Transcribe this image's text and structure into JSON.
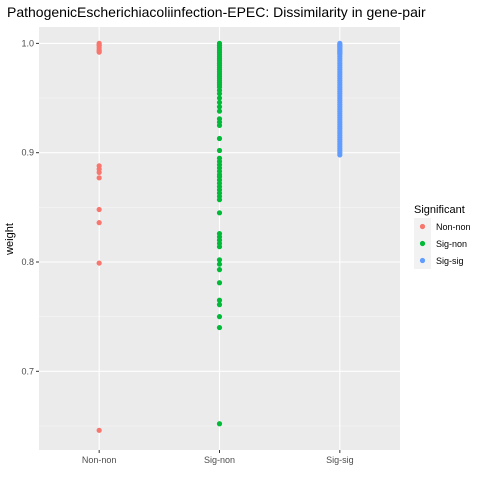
{
  "chart_data": {
    "type": "scatter",
    "title": "PathogenicEscherichiacoliinfection-EPEC: Dissimilarity in gene-pair",
    "xlabel": "",
    "ylabel": "weight",
    "categories": [
      "Non-non",
      "Sig-non",
      "Sig-sig"
    ],
    "ylim": [
      0.628,
      1.015
    ],
    "y_ticks": [
      0.7,
      0.8,
      0.9,
      1.0
    ],
    "y_tick_labels": [
      "0.7",
      "0.8",
      "0.9",
      "1.0"
    ],
    "grid": true,
    "legend": {
      "title": "Significant",
      "position": "right",
      "entries": [
        "Non-non",
        "Sig-non",
        "Sig-sig"
      ]
    },
    "colors": {
      "Non-non": "#F8766D",
      "Sig-non": "#00BA38",
      "Sig-sig": "#619CFF",
      "panel": "#EBEBEB",
      "grid_major": "#FFFFFF",
      "legend_key": "#F2F2F2"
    },
    "series": [
      {
        "name": "Non-non",
        "category": "Non-non",
        "values": [
          1.0,
          0.999,
          0.998,
          0.996,
          0.994,
          0.993,
          0.992,
          0.888,
          0.885,
          0.882,
          0.877,
          0.848,
          0.836,
          0.799,
          0.646
        ]
      },
      {
        "name": "Sig-non",
        "category": "Sig-non",
        "values": [
          1.0,
          0.998,
          0.996,
          0.994,
          0.992,
          0.99,
          0.988,
          0.986,
          0.984,
          0.982,
          0.98,
          0.978,
          0.976,
          0.974,
          0.972,
          0.97,
          0.968,
          0.966,
          0.964,
          0.962,
          0.96,
          0.957,
          0.954,
          0.95,
          0.946,
          0.942,
          0.938,
          0.931,
          0.928,
          0.925,
          0.913,
          0.902,
          0.895,
          0.892,
          0.889,
          0.886,
          0.883,
          0.88,
          0.878,
          0.875,
          0.872,
          0.869,
          0.866,
          0.863,
          0.86,
          0.857,
          0.845,
          0.826,
          0.823,
          0.82,
          0.817,
          0.814,
          0.802,
          0.798,
          0.793,
          0.781,
          0.765,
          0.761,
          0.75,
          0.74,
          0.652
        ]
      },
      {
        "name": "Sig-sig",
        "category": "Sig-sig",
        "values": [
          1.0,
          0.999,
          0.998,
          0.997,
          0.996,
          0.995,
          0.994,
          0.993,
          0.992,
          0.991,
          0.99,
          0.988,
          0.986,
          0.984,
          0.982,
          0.98,
          0.978,
          0.976,
          0.974,
          0.972,
          0.97,
          0.968,
          0.966,
          0.964,
          0.962,
          0.96,
          0.958,
          0.956,
          0.954,
          0.952,
          0.95,
          0.948,
          0.946,
          0.944,
          0.942,
          0.94,
          0.938,
          0.936,
          0.934,
          0.932,
          0.93,
          0.928,
          0.926,
          0.924,
          0.922,
          0.92,
          0.918,
          0.916,
          0.914,
          0.912,
          0.91,
          0.908,
          0.906,
          0.904,
          0.902,
          0.9,
          0.898
        ]
      }
    ]
  }
}
